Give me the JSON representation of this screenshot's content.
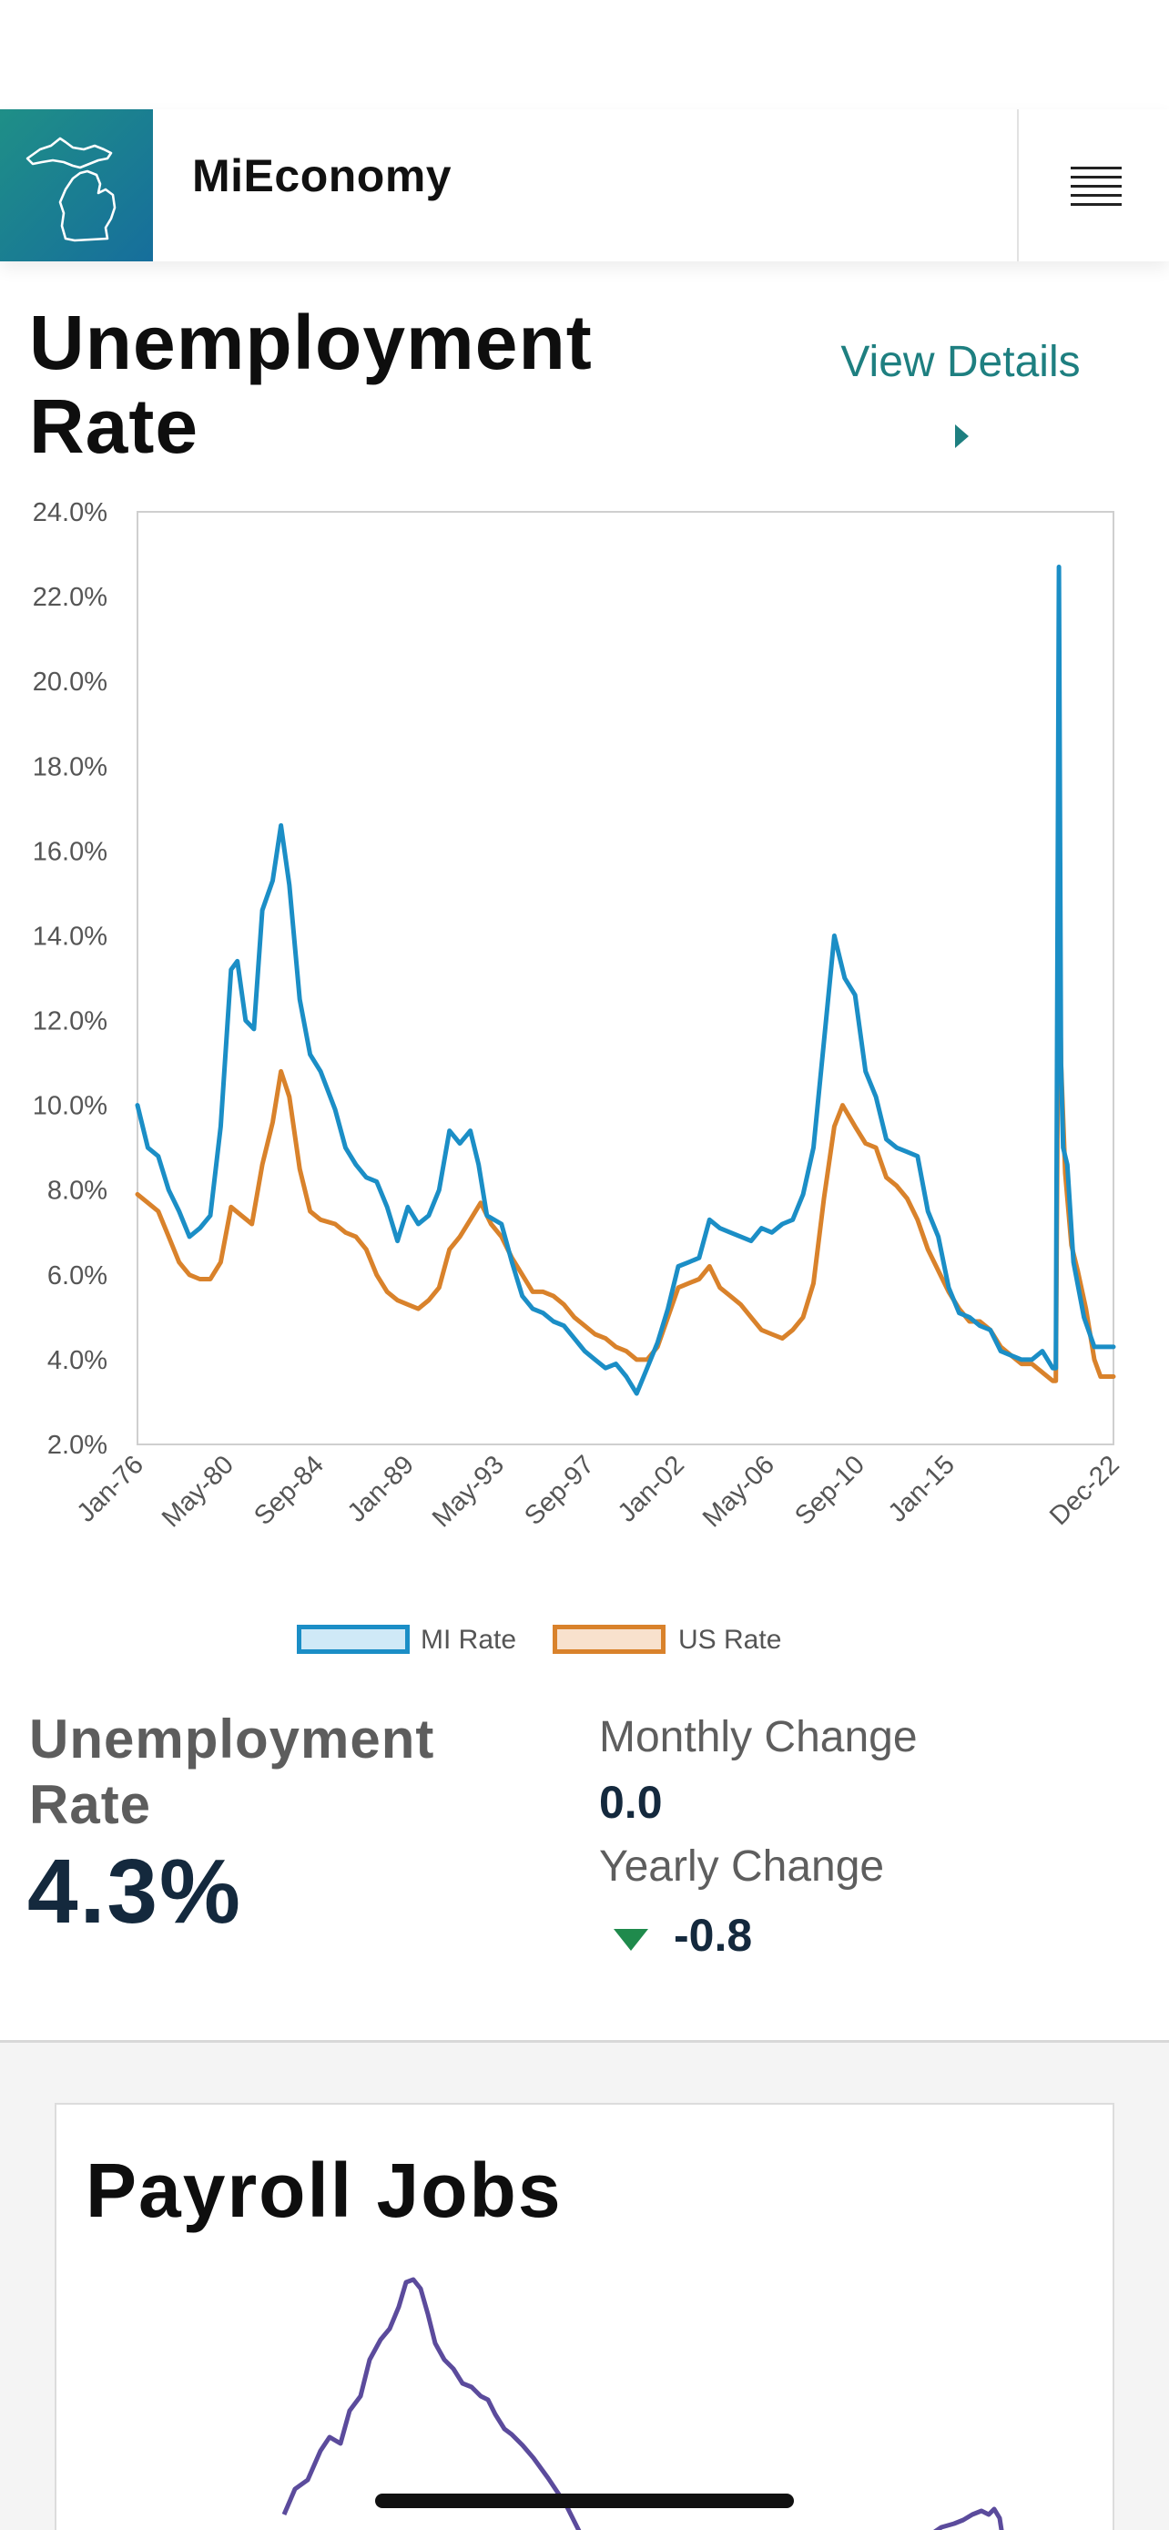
{
  "app": {
    "brand": "MiEconomy",
    "logo_icon": "michigan-map-icon",
    "menu_icon": "hamburger-menu-icon"
  },
  "unemployment": {
    "title": "Unemployment Rate",
    "view_details_label": "View Details",
    "stat_label": "Unemployment Rate",
    "stat_value": "4.3%",
    "monthly_change_label": "Monthly Change",
    "monthly_change_value": "0.0",
    "yearly_change_label": "Yearly Change",
    "yearly_change_value": "-0.8",
    "yearly_change_direction": "down",
    "colors": {
      "accent": "#1e7f80",
      "down": "#1f8a4c",
      "value": "#14293d"
    }
  },
  "chart_data": {
    "type": "line",
    "x_tick_labels": [
      "Jan-76",
      "May-80",
      "Sep-84",
      "Jan-89",
      "May-93",
      "Sep-97",
      "Jan-02",
      "May-06",
      "Sep-10",
      "Jan-15",
      "Dec-22"
    ],
    "y_tick_labels": [
      "2.0%",
      "4.0%",
      "6.0%",
      "8.0%",
      "10.0%",
      "12.0%",
      "14.0%",
      "16.0%",
      "18.0%",
      "20.0%",
      "22.0%",
      "24.0%"
    ],
    "ylim": [
      2,
      24
    ],
    "xlim": [
      1976.0,
      2022.92
    ],
    "grid": false,
    "legend_position": "bottom",
    "series": [
      {
        "name": "MI Rate",
        "color": "#1b8ec6",
        "fill": "#cfe9f7",
        "points": [
          [
            1976.0,
            10.0
          ],
          [
            1976.5,
            9.0
          ],
          [
            1977.0,
            8.8
          ],
          [
            1977.5,
            8.0
          ],
          [
            1978.0,
            7.5
          ],
          [
            1978.5,
            6.9
          ],
          [
            1979.0,
            7.1
          ],
          [
            1979.5,
            7.4
          ],
          [
            1980.0,
            9.5
          ],
          [
            1980.5,
            13.2
          ],
          [
            1980.8,
            13.4
          ],
          [
            1981.2,
            12.0
          ],
          [
            1981.6,
            11.8
          ],
          [
            1982.0,
            14.6
          ],
          [
            1982.5,
            15.3
          ],
          [
            1982.9,
            16.6
          ],
          [
            1983.3,
            15.2
          ],
          [
            1983.8,
            12.5
          ],
          [
            1984.3,
            11.2
          ],
          [
            1984.8,
            10.8
          ],
          [
            1985.5,
            9.9
          ],
          [
            1986.0,
            9.0
          ],
          [
            1986.5,
            8.6
          ],
          [
            1987.0,
            8.3
          ],
          [
            1987.5,
            8.2
          ],
          [
            1988.0,
            7.6
          ],
          [
            1988.5,
            6.8
          ],
          [
            1989.0,
            7.6
          ],
          [
            1989.5,
            7.2
          ],
          [
            1990.0,
            7.4
          ],
          [
            1990.5,
            8.0
          ],
          [
            1991.0,
            9.4
          ],
          [
            1991.5,
            9.1
          ],
          [
            1992.0,
            9.4
          ],
          [
            1992.4,
            8.6
          ],
          [
            1992.8,
            7.4
          ],
          [
            1993.5,
            7.2
          ],
          [
            1994.0,
            6.3
          ],
          [
            1994.5,
            5.5
          ],
          [
            1995.0,
            5.2
          ],
          [
            1995.5,
            5.1
          ],
          [
            1996.0,
            4.9
          ],
          [
            1996.5,
            4.8
          ],
          [
            1997.0,
            4.5
          ],
          [
            1997.5,
            4.2
          ],
          [
            1998.0,
            4.0
          ],
          [
            1998.5,
            3.8
          ],
          [
            1999.0,
            3.9
          ],
          [
            1999.5,
            3.6
          ],
          [
            2000.0,
            3.2
          ],
          [
            2000.5,
            3.8
          ],
          [
            2001.0,
            4.4
          ],
          [
            2001.5,
            5.2
          ],
          [
            2002.0,
            6.2
          ],
          [
            2002.5,
            6.3
          ],
          [
            2003.0,
            6.4
          ],
          [
            2003.5,
            7.3
          ],
          [
            2004.0,
            7.1
          ],
          [
            2004.5,
            7.0
          ],
          [
            2005.0,
            6.9
          ],
          [
            2005.5,
            6.8
          ],
          [
            2006.0,
            7.1
          ],
          [
            2006.5,
            7.0
          ],
          [
            2007.0,
            7.2
          ],
          [
            2007.5,
            7.3
          ],
          [
            2008.0,
            7.9
          ],
          [
            2008.5,
            9.0
          ],
          [
            2009.0,
            11.5
          ],
          [
            2009.5,
            14.0
          ],
          [
            2010.0,
            13.0
          ],
          [
            2010.5,
            12.6
          ],
          [
            2011.0,
            10.8
          ],
          [
            2011.5,
            10.2
          ],
          [
            2012.0,
            9.2
          ],
          [
            2012.5,
            9.0
          ],
          [
            2013.0,
            8.9
          ],
          [
            2013.5,
            8.8
          ],
          [
            2014.0,
            7.5
          ],
          [
            2014.5,
            6.9
          ],
          [
            2015.0,
            5.7
          ],
          [
            2015.5,
            5.1
          ],
          [
            2016.0,
            5.0
          ],
          [
            2016.5,
            4.8
          ],
          [
            2017.0,
            4.7
          ],
          [
            2017.5,
            4.2
          ],
          [
            2018.0,
            4.1
          ],
          [
            2018.5,
            4.0
          ],
          [
            2019.0,
            4.0
          ],
          [
            2019.5,
            4.2
          ],
          [
            2020.0,
            3.8
          ],
          [
            2020.15,
            3.8
          ],
          [
            2020.3,
            22.7
          ],
          [
            2020.4,
            11.0
          ],
          [
            2020.5,
            9.0
          ],
          [
            2020.7,
            8.6
          ],
          [
            2021.0,
            6.3
          ],
          [
            2021.5,
            5.0
          ],
          [
            2022.0,
            4.3
          ],
          [
            2022.5,
            4.3
          ],
          [
            2022.92,
            4.3
          ]
        ]
      },
      {
        "name": "US Rate",
        "color": "#d9822b",
        "fill": "#f8e1cd",
        "points": [
          [
            1976.0,
            7.9
          ],
          [
            1976.5,
            7.7
          ],
          [
            1977.0,
            7.5
          ],
          [
            1977.5,
            6.9
          ],
          [
            1978.0,
            6.3
          ],
          [
            1978.5,
            6.0
          ],
          [
            1979.0,
            5.9
          ],
          [
            1979.5,
            5.9
          ],
          [
            1980.0,
            6.3
          ],
          [
            1980.5,
            7.6
          ],
          [
            1981.0,
            7.4
          ],
          [
            1981.5,
            7.2
          ],
          [
            1982.0,
            8.6
          ],
          [
            1982.5,
            9.6
          ],
          [
            1982.9,
            10.8
          ],
          [
            1983.3,
            10.2
          ],
          [
            1983.8,
            8.5
          ],
          [
            1984.3,
            7.5
          ],
          [
            1984.8,
            7.3
          ],
          [
            1985.5,
            7.2
          ],
          [
            1986.0,
            7.0
          ],
          [
            1986.5,
            6.9
          ],
          [
            1987.0,
            6.6
          ],
          [
            1987.5,
            6.0
          ],
          [
            1988.0,
            5.6
          ],
          [
            1988.5,
            5.4
          ],
          [
            1989.0,
            5.3
          ],
          [
            1989.5,
            5.2
          ],
          [
            1990.0,
            5.4
          ],
          [
            1990.5,
            5.7
          ],
          [
            1991.0,
            6.6
          ],
          [
            1991.5,
            6.9
          ],
          [
            1992.0,
            7.3
          ],
          [
            1992.5,
            7.7
          ],
          [
            1993.0,
            7.2
          ],
          [
            1993.5,
            6.9
          ],
          [
            1994.0,
            6.4
          ],
          [
            1994.5,
            6.0
          ],
          [
            1995.0,
            5.6
          ],
          [
            1995.5,
            5.6
          ],
          [
            1996.0,
            5.5
          ],
          [
            1996.5,
            5.3
          ],
          [
            1997.0,
            5.0
          ],
          [
            1997.5,
            4.8
          ],
          [
            1998.0,
            4.6
          ],
          [
            1998.5,
            4.5
          ],
          [
            1999.0,
            4.3
          ],
          [
            1999.5,
            4.2
          ],
          [
            2000.0,
            4.0
          ],
          [
            2000.5,
            4.0
          ],
          [
            2001.0,
            4.3
          ],
          [
            2001.5,
            5.0
          ],
          [
            2002.0,
            5.7
          ],
          [
            2002.5,
            5.8
          ],
          [
            2003.0,
            5.9
          ],
          [
            2003.5,
            6.2
          ],
          [
            2004.0,
            5.7
          ],
          [
            2004.5,
            5.5
          ],
          [
            2005.0,
            5.3
          ],
          [
            2005.5,
            5.0
          ],
          [
            2006.0,
            4.7
          ],
          [
            2006.5,
            4.6
          ],
          [
            2007.0,
            4.5
          ],
          [
            2007.5,
            4.7
          ],
          [
            2008.0,
            5.0
          ],
          [
            2008.5,
            5.8
          ],
          [
            2009.0,
            7.8
          ],
          [
            2009.5,
            9.5
          ],
          [
            2009.9,
            10.0
          ],
          [
            2010.5,
            9.5
          ],
          [
            2011.0,
            9.1
          ],
          [
            2011.5,
            9.0
          ],
          [
            2012.0,
            8.3
          ],
          [
            2012.5,
            8.1
          ],
          [
            2013.0,
            7.8
          ],
          [
            2013.5,
            7.3
          ],
          [
            2014.0,
            6.6
          ],
          [
            2014.5,
            6.1
          ],
          [
            2015.0,
            5.6
          ],
          [
            2015.5,
            5.2
          ],
          [
            2016.0,
            4.9
          ],
          [
            2016.5,
            4.9
          ],
          [
            2017.0,
            4.7
          ],
          [
            2017.5,
            4.3
          ],
          [
            2018.0,
            4.1
          ],
          [
            2018.5,
            3.9
          ],
          [
            2019.0,
            3.9
          ],
          [
            2019.5,
            3.7
          ],
          [
            2020.0,
            3.5
          ],
          [
            2020.15,
            3.5
          ],
          [
            2020.3,
            14.7
          ],
          [
            2020.4,
            11.0
          ],
          [
            2020.6,
            8.4
          ],
          [
            2020.9,
            6.7
          ],
          [
            2021.2,
            6.1
          ],
          [
            2021.6,
            5.2
          ],
          [
            2022.0,
            4.0
          ],
          [
            2022.3,
            3.6
          ],
          [
            2022.92,
            3.6
          ]
        ]
      }
    ]
  },
  "payroll": {
    "title": "Payroll Jobs",
    "line_color": "#5b4b9c"
  }
}
